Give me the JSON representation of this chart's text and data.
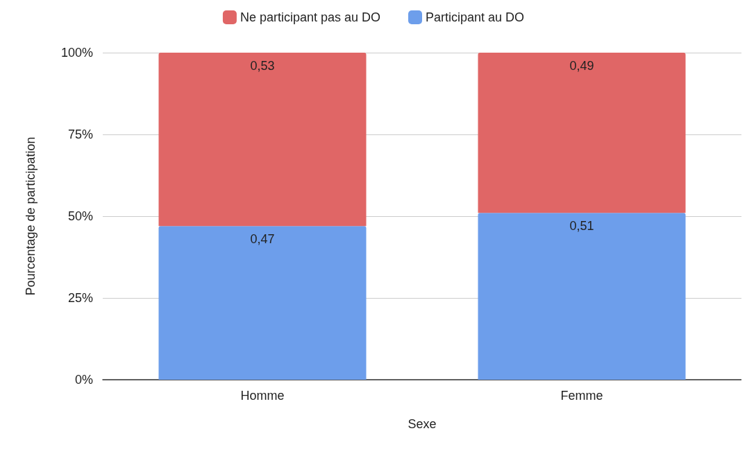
{
  "chart_data": {
    "type": "bar",
    "stacked": true,
    "xlabel": "Sexe",
    "ylabel": "Pourcentage de participation",
    "categories": [
      "Homme",
      "Femme"
    ],
    "series": [
      {
        "name": "Participant au DO",
        "color": "#6d9eeb",
        "values": [
          0.47,
          0.51
        ],
        "value_labels": [
          "0,47",
          "0,51"
        ]
      },
      {
        "name": "Ne participant pas au DO",
        "color": "#e06666",
        "values": [
          0.53,
          0.49
        ],
        "value_labels": [
          "0,53",
          "0,49"
        ]
      }
    ],
    "ylim": [
      0,
      1
    ],
    "yticks": [
      {
        "value": 0,
        "label": "0%"
      },
      {
        "value": 0.25,
        "label": "25%"
      },
      {
        "value": 0.5,
        "label": "50%"
      },
      {
        "value": 0.75,
        "label": "75%"
      },
      {
        "value": 1,
        "label": "100%"
      }
    ],
    "grid": "y",
    "legend": "top"
  }
}
